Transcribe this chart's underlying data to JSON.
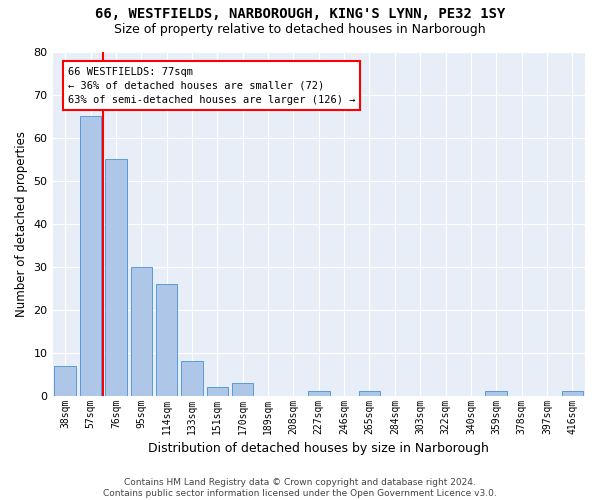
{
  "title1": "66, WESTFIELDS, NARBOROUGH, KING'S LYNN, PE32 1SY",
  "title2": "Size of property relative to detached houses in Narborough",
  "xlabel": "Distribution of detached houses by size in Narborough",
  "ylabel": "Number of detached properties",
  "footer1": "Contains HM Land Registry data © Crown copyright and database right 2024.",
  "footer2": "Contains public sector information licensed under the Open Government Licence v3.0.",
  "bar_labels": [
    "38sqm",
    "57sqm",
    "76sqm",
    "95sqm",
    "114sqm",
    "133sqm",
    "151sqm",
    "170sqm",
    "189sqm",
    "208sqm",
    "227sqm",
    "246sqm",
    "265sqm",
    "284sqm",
    "303sqm",
    "322sqm",
    "340sqm",
    "359sqm",
    "378sqm",
    "397sqm",
    "416sqm"
  ],
  "bar_values": [
    7,
    65,
    55,
    30,
    26,
    8,
    2,
    3,
    0,
    0,
    1,
    0,
    1,
    0,
    0,
    0,
    0,
    1,
    0,
    0,
    1
  ],
  "bar_color": "#aec6e8",
  "bar_edge_color": "#5b9bd5",
  "annotation_box_text": "66 WESTFIELDS: 77sqm\n← 36% of detached houses are smaller (72)\n63% of semi-detached houses are larger (126) →",
  "annotation_box_color": "white",
  "annotation_box_edge_color": "red",
  "annotation_line_color": "red",
  "ylim": [
    0,
    80
  ],
  "yticks": [
    0,
    10,
    20,
    30,
    40,
    50,
    60,
    70,
    80
  ],
  "background_color": "#e8eef8",
  "grid_color": "white",
  "title1_fontsize": 10,
  "title2_fontsize": 9,
  "ylabel_fontsize": 8.5,
  "xlabel_fontsize": 9,
  "tick_fontsize": 7,
  "footer_fontsize": 6.5
}
